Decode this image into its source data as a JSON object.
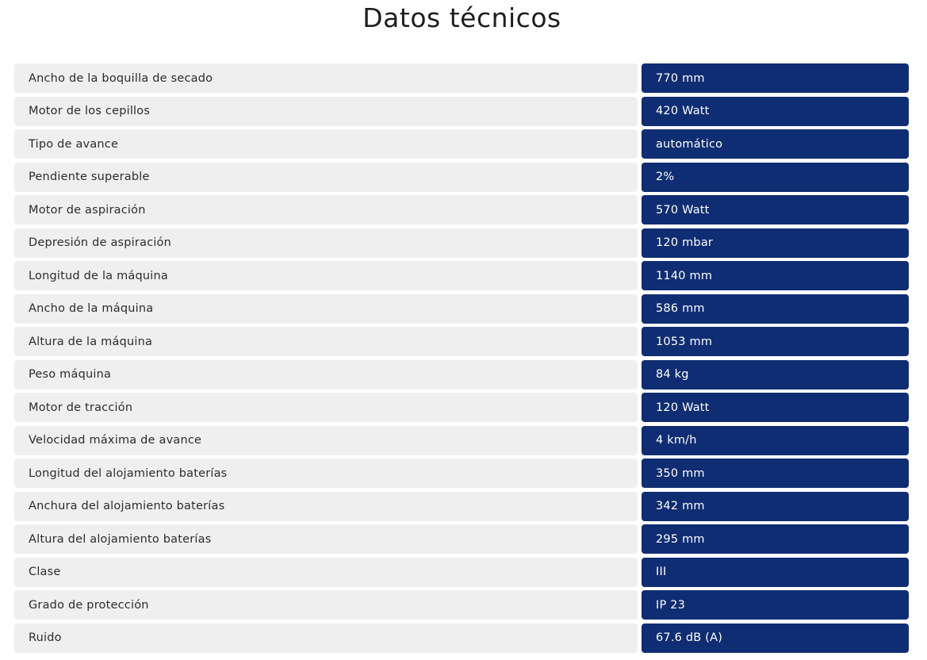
{
  "title": "Datos técnicos",
  "colors": {
    "label_bg": "#efefef",
    "value_bg": "#0f2d72",
    "value_text": "#ffffff"
  },
  "specs": [
    {
      "label": "Ancho de la boquilla de secado",
      "value": "770 mm"
    },
    {
      "label": "Motor de los cepillos",
      "value": "420 Watt"
    },
    {
      "label": "Tipo de avance",
      "value": "automático"
    },
    {
      "label": "Pendiente superable",
      "value": "2%"
    },
    {
      "label": "Motor de aspiración",
      "value": "570 Watt"
    },
    {
      "label": "Depresión de aspiración",
      "value": "120 mbar"
    },
    {
      "label": "Longitud de la máquina",
      "value": "1140 mm"
    },
    {
      "label": "Ancho de la máquina",
      "value": "586 mm"
    },
    {
      "label": "Altura de la máquina",
      "value": "1053 mm"
    },
    {
      "label": "Peso máquina",
      "value": "84 kg"
    },
    {
      "label": "Motor de tracción",
      "value": "120 Watt"
    },
    {
      "label": "Velocidad máxima de avance",
      "value": "4 km/h"
    },
    {
      "label": "Longitud del alojamiento baterías",
      "value": "350 mm"
    },
    {
      "label": "Anchura del alojamiento baterías",
      "value": "342 mm"
    },
    {
      "label": "Altura del alojamiento baterías",
      "value": "295 mm"
    },
    {
      "label": "Clase",
      "value": "III"
    },
    {
      "label": "Grado de protección",
      "value": "IP 23"
    },
    {
      "label": "Ruido",
      "value": "67.6 dB (A)"
    }
  ]
}
